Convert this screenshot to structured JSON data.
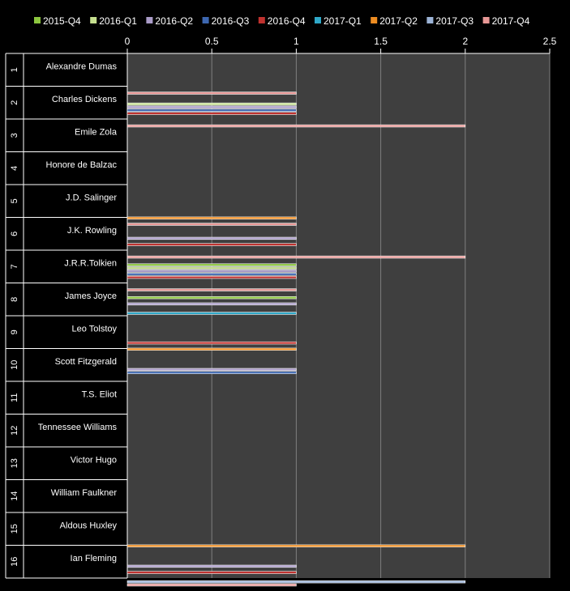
{
  "chart_data": {
    "type": "bar",
    "orientation": "horizontal",
    "xlim": [
      0,
      2.5
    ],
    "x_ticks": [
      "0",
      "0.5",
      "1",
      "1.5",
      "2",
      "2.5"
    ],
    "grid": true,
    "legend_position": "top",
    "row_numbers": [
      "1",
      "2",
      "3",
      "4",
      "5",
      "6",
      "7",
      "8",
      "9",
      "10",
      "11",
      "12",
      "13",
      "14",
      "15",
      "16"
    ],
    "categories": [
      "Alexandre Dumas",
      "Charles Dickens",
      "Emile Zola",
      "Honore de Balzac",
      "J.D. Salinger",
      "J.K. Rowling",
      "J.R.R.Tolkien",
      "James Joyce",
      "Leo Tolstoy",
      "Scott Fitzgerald",
      "T.S. Eliot",
      "Tennessee Williams",
      "Victor Hugo",
      "William Faulkner",
      "Aldous Huxley",
      "Ian Fleming"
    ],
    "series": [
      {
        "name": "2015-Q4",
        "color": "#8cc63f",
        "values": [
          0,
          0,
          0,
          0,
          0,
          0,
          1,
          1,
          0,
          0,
          0,
          0,
          0,
          0,
          0,
          0
        ]
      },
      {
        "name": "2016-Q1",
        "color": "#c6e08f",
        "values": [
          0,
          1,
          0,
          0,
          0,
          0,
          1,
          0,
          0,
          0,
          0,
          0,
          0,
          0,
          0,
          0
        ]
      },
      {
        "name": "2016-Q2",
        "color": "#aa9cc8",
        "values": [
          0,
          1,
          0,
          0,
          0,
          1,
          1,
          1,
          0,
          1,
          0,
          0,
          0,
          0,
          0,
          1
        ]
      },
      {
        "name": "2016-Q3",
        "color": "#3d67b0",
        "values": [
          0,
          1,
          0,
          0,
          0,
          0,
          1,
          0,
          0,
          1,
          0,
          0,
          0,
          0,
          0,
          0
        ]
      },
      {
        "name": "2016-Q4",
        "color": "#c0312e",
        "values": [
          0,
          1,
          0,
          0,
          0,
          1,
          1,
          0,
          1,
          0,
          0,
          0,
          0,
          0,
          0,
          1
        ]
      },
      {
        "name": "2017-Q1",
        "color": "#2fa8c8",
        "values": [
          0,
          0,
          0,
          0,
          0,
          0,
          0,
          1,
          0,
          0,
          0,
          0,
          0,
          0,
          0,
          0
        ]
      },
      {
        "name": "2017-Q2",
        "color": "#ee8d22",
        "values": [
          0,
          0,
          0,
          0,
          1,
          0,
          0,
          0,
          1,
          0,
          0,
          0,
          0,
          0,
          2,
          0
        ]
      },
      {
        "name": "2017-Q3",
        "color": "#9cb3d6",
        "values": [
          0,
          0,
          0,
          0,
          0,
          0,
          0,
          0,
          0,
          0,
          0,
          0,
          0,
          0,
          0,
          2
        ]
      },
      {
        "name": "2017-Q4",
        "color": "#e89896",
        "values": [
          1,
          2,
          0,
          0,
          1,
          2,
          1,
          0,
          0,
          0,
          0,
          0,
          0,
          0,
          0,
          1
        ]
      }
    ]
  }
}
